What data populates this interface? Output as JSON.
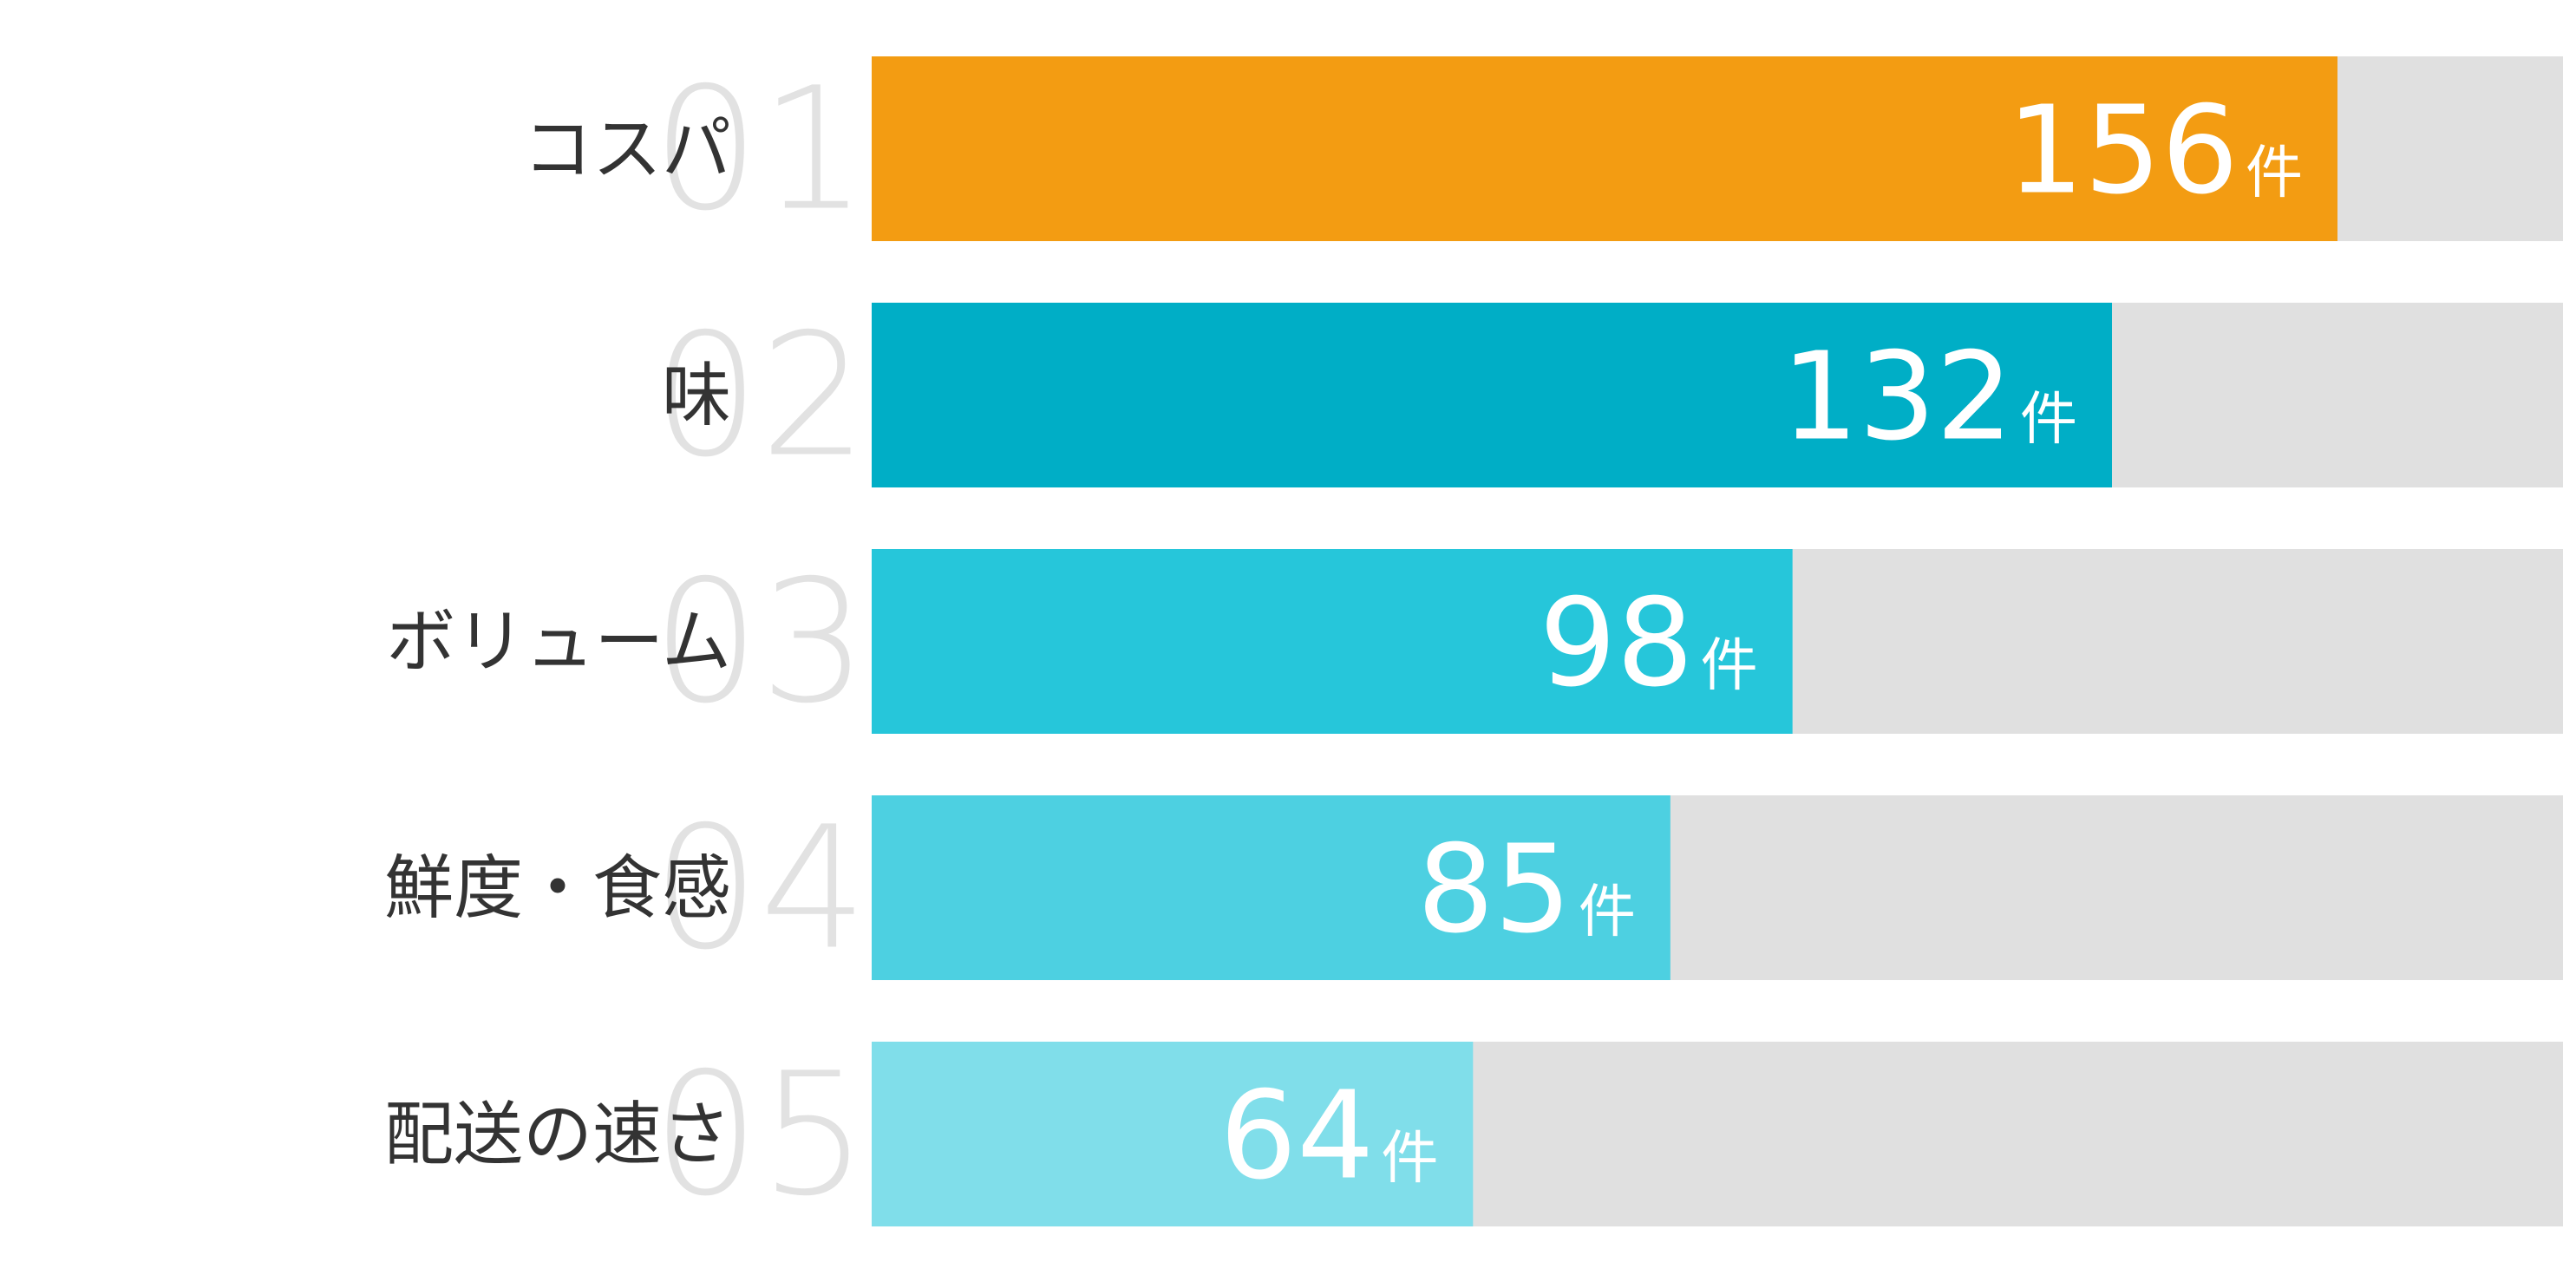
{
  "chart_data": {
    "type": "ranked-bar",
    "ranks": [
      "01",
      "02",
      "03",
      "04",
      "05"
    ],
    "categories": [
      "コスパ",
      "味",
      "ボリューム",
      "鮮度・食感",
      "配送の速さ"
    ],
    "values": [
      156,
      132,
      98,
      85,
      64
    ],
    "unit": "件",
    "colors": [
      "#f39c12",
      "#00aec6",
      "#26c6da",
      "#4dd0e1",
      "#80deea"
    ],
    "track_color": "#e0e0e0",
    "xlim": [
      0,
      180
    ]
  }
}
